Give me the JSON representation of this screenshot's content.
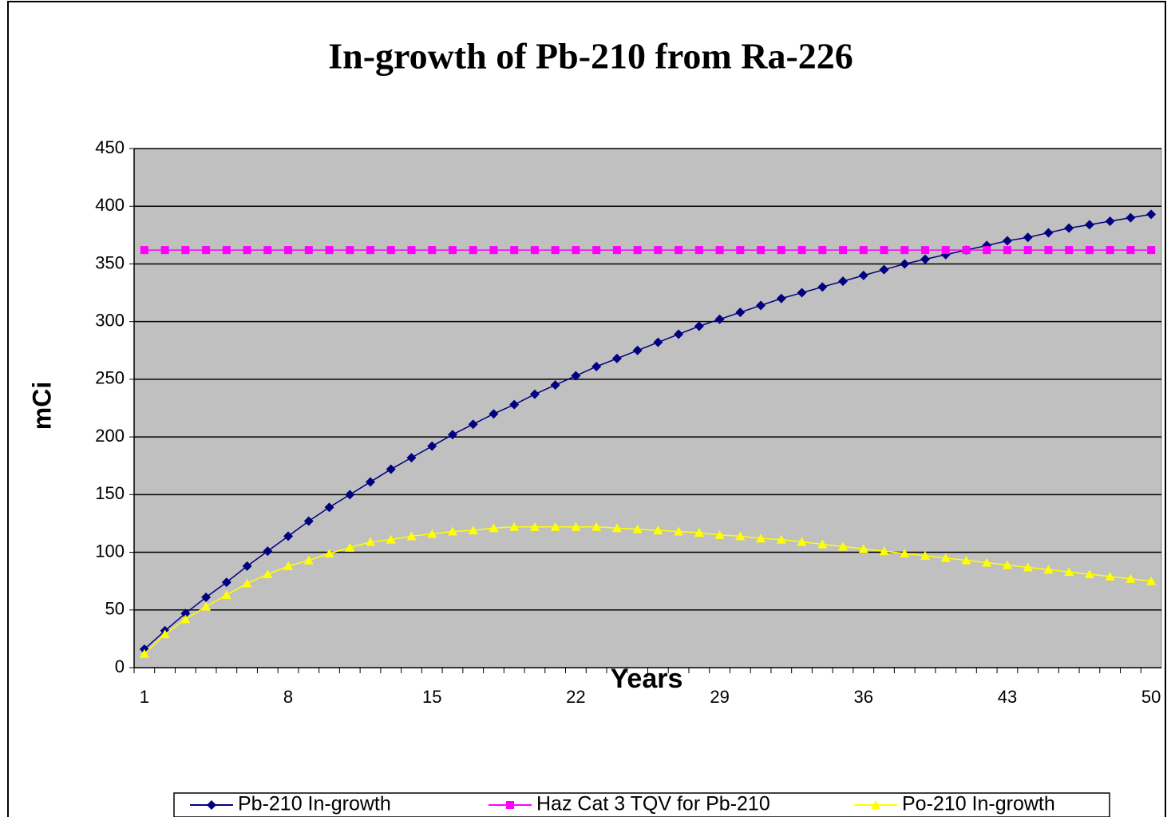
{
  "chart_data": {
    "type": "line",
    "title": "In-growth of Pb-210 from Ra-226",
    "x_label": "Years",
    "y_label": "mCi",
    "categories": [
      1,
      null,
      null,
      null,
      null,
      null,
      null,
      8,
      null,
      null,
      null,
      null,
      null,
      null,
      15,
      null,
      null,
      null,
      null,
      null,
      null,
      22,
      null,
      null,
      null,
      null,
      null,
      null,
      29,
      null,
      null,
      null,
      null,
      null,
      null,
      36,
      null,
      null,
      null,
      null,
      null,
      null,
      43,
      null,
      null,
      null,
      null,
      null,
      null,
      50
    ],
    "ylim": [
      0,
      450
    ],
    "yticks": [
      0,
      50,
      100,
      150,
      200,
      250,
      300,
      350,
      400,
      450
    ],
    "grid": true,
    "legend": "bottom",
    "series": [
      {
        "name": "Pb-210 In-growth",
        "color": "#000080",
        "marker": "diamond",
        "values": [
          16,
          32,
          47,
          61,
          74,
          88,
          101,
          114,
          127,
          139,
          150,
          161,
          172,
          182,
          192,
          202,
          211,
          220,
          228,
          237,
          245,
          253,
          261,
          268,
          275,
          282,
          289,
          296,
          302,
          308,
          314,
          320,
          325,
          330,
          335,
          340,
          345,
          350,
          354,
          358,
          362,
          366,
          370,
          373,
          377,
          381,
          384,
          387,
          390,
          393
        ]
      },
      {
        "name": "Haz Cat 3 TQV for Pb-210",
        "color": "#ff00ff",
        "marker": "square",
        "values": [
          362,
          362,
          362,
          362,
          362,
          362,
          362,
          362,
          362,
          362,
          362,
          362,
          362,
          362,
          362,
          362,
          362,
          362,
          362,
          362,
          362,
          362,
          362,
          362,
          362,
          362,
          362,
          362,
          362,
          362,
          362,
          362,
          362,
          362,
          362,
          362,
          362,
          362,
          362,
          362,
          362,
          362,
          362,
          362,
          362,
          362,
          362,
          362,
          362,
          362
        ]
      },
      {
        "name": "Po-210 In-growth",
        "color": "#ffff00",
        "marker": "triangle",
        "values": [
          12,
          29,
          42,
          53,
          63,
          73,
          81,
          88,
          93,
          99,
          104,
          109,
          111,
          114,
          116,
          118,
          119,
          121,
          122,
          122,
          122,
          122,
          122,
          121,
          120,
          119,
          118,
          117,
          115,
          114,
          112,
          111,
          109,
          107,
          105,
          103,
          101,
          99,
          97,
          95,
          93,
          91,
          89,
          87,
          85,
          83,
          81,
          79,
          77,
          75
        ]
      }
    ]
  }
}
